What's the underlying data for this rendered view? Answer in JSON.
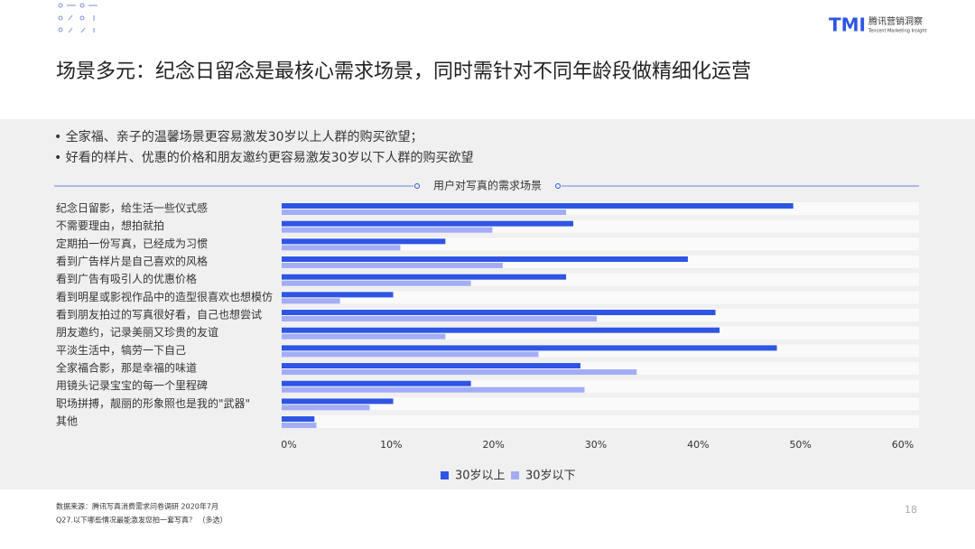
{
  "header": {
    "logo": "TMI",
    "brand": "腾讯营销洞察",
    "brand_en": "Tencent Marketing Insight",
    "title": "场景多元：纪念日留念是最核心需求场景，同时需针对不同年龄段做精细化运营"
  },
  "bullets": [
    "全家福、亲子的温馨场景更容易激发30岁以上人群的购买欲望；",
    "好看的样片、优惠的价格和朋友邀约更容易激发30岁以下人群的购买欲望"
  ],
  "chart_data": {
    "type": "hbar",
    "title": "用户对写真的需求场景",
    "categories": [
      "纪念日留影，给生活一些仪式感",
      "不需要理由，想拍就拍",
      "定期拍一份写真，已经成为习惯",
      "看到广告样片是自己喜欢的风格",
      "看到广告有吸引人的优惠价格",
      "看到明星或影视作品中的造型很喜欢也想模仿",
      "看到朋友拍过的写真很好看，自己也想尝试",
      "朋友邀约，记录美丽又珍贵的友谊",
      "平淡生活中，犒劳一下自己",
      "全家福合影，那是幸福的味道",
      "用镜头记录宝宝的每一个里程碑",
      "职场拼搏，靓丽的形象照也是我的\"武器\"",
      "其他"
    ],
    "series": [
      {
        "name": "30岁以上",
        "color": "#2f55e4",
        "values": [
          50.0,
          28.5,
          16.0,
          39.7,
          27.8,
          10.9,
          42.4,
          42.8,
          48.4,
          29.2,
          18.5,
          10.9,
          3.2
        ]
      },
      {
        "name": "30岁以下",
        "color": "#a3adf7",
        "values": [
          27.8,
          20.6,
          11.6,
          21.6,
          18.5,
          5.7,
          30.8,
          16.0,
          25.1,
          34.7,
          29.6,
          8.6,
          3.4
        ]
      }
    ],
    "xlim": [
      0,
      60
    ],
    "xticks": [
      {
        "value": 0,
        "label": "0%"
      },
      {
        "value": 10,
        "label": "10%"
      },
      {
        "value": 20,
        "label": "20%"
      },
      {
        "value": 30,
        "label": "30%"
      },
      {
        "value": 40,
        "label": "40%"
      },
      {
        "value": 50,
        "label": "50%"
      },
      {
        "value": 60,
        "label": "60%"
      }
    ],
    "legend": "bottom"
  },
  "footer": {
    "source": "数据来源：腾讯写真消费需求问卷调研 2020年7月",
    "question": "Q27.以下哪些情况最能激发您拍一套写真？ （多选）",
    "page": "18"
  }
}
